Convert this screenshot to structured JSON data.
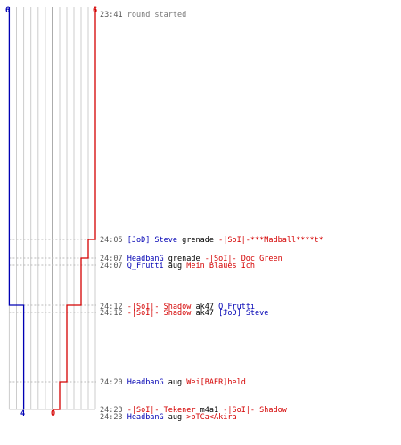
{
  "scoreboard": {
    "colors": {
      "team_a": "#0000b4",
      "team_b": "#d40000",
      "grid": "#cccccc",
      "mid": "#888888",
      "dash": "#bbbbbb",
      "text": "#000000",
      "time": "#555555",
      "info": "#777777"
    },
    "team_a_start": "6",
    "team_b_start": "6",
    "team_a_end": "4",
    "team_b_end": "0",
    "alive_a": [
      6,
      6,
      6,
      6,
      4,
      4,
      4,
      4
    ],
    "alive_b": [
      6,
      5,
      4,
      4,
      2,
      2,
      1,
      0
    ]
  },
  "events": [
    {
      "time": "23:41",
      "parts": [
        {
          "text": "round started",
          "team": "info"
        }
      ]
    },
    {
      "time": "24:05",
      "parts": [
        {
          "text": "[JoD] Steve",
          "team": "a"
        },
        {
          "text": "grenade",
          "team": "none"
        },
        {
          "text": "-|SoI|-***Madball****t*",
          "team": "b"
        }
      ]
    },
    {
      "time": "24:07",
      "parts": [
        {
          "text": "HeadbanG",
          "team": "a"
        },
        {
          "text": "grenade",
          "team": "none"
        },
        {
          "text": "-|SoI|- Doc Green",
          "team": "b"
        }
      ]
    },
    {
      "time": "24:07",
      "parts": [
        {
          "text": "Q_Frutti",
          "team": "a"
        },
        {
          "text": "aug",
          "team": "none"
        },
        {
          "text": "Mein Blaues Ich",
          "team": "b"
        }
      ]
    },
    {
      "time": "24:12",
      "parts": [
        {
          "text": "-|SoI|- Shadow",
          "team": "b"
        },
        {
          "text": "ak47",
          "team": "none"
        },
        {
          "text": "Q_Frutti",
          "team": "a"
        }
      ]
    },
    {
      "time": "24:12",
      "parts": [
        {
          "text": "-|SoI|- Shadow",
          "team": "b"
        },
        {
          "text": "ak47",
          "team": "none"
        },
        {
          "text": "[JoD] Steve",
          "team": "a"
        }
      ]
    },
    {
      "time": "24:20",
      "parts": [
        {
          "text": "HeadbanG",
          "team": "a"
        },
        {
          "text": "aug",
          "team": "none"
        },
        {
          "text": "Wei[BAER]held",
          "team": "b"
        }
      ]
    },
    {
      "time": "24:23",
      "parts": [
        {
          "text": "-|SoI|- Tekener",
          "team": "b"
        },
        {
          "text": "m4a1",
          "team": "none"
        },
        {
          "text": "-|SoI|- Shadow",
          "team": "b"
        }
      ]
    },
    {
      "time": "24:23",
      "parts": [
        {
          "text": "HeadbanG",
          "team": "a"
        },
        {
          "text": "aug",
          "team": "none"
        },
        {
          "text": ">bTCa<Akira",
          "team": "b"
        }
      ]
    }
  ]
}
